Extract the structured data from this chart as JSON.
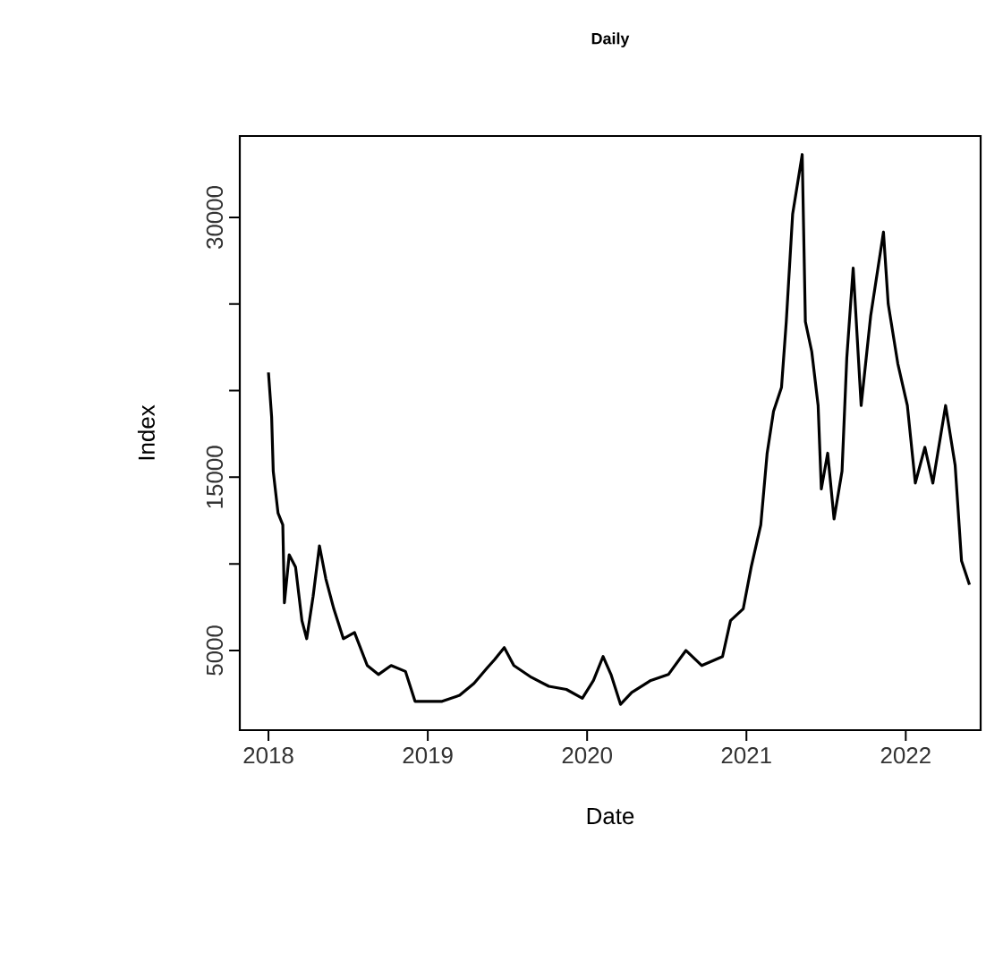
{
  "chart_data": {
    "type": "line",
    "title": "Daily",
    "xlabel": "Date",
    "ylabel": "Index",
    "xlim": [
      2017.82,
      2022.47
    ],
    "ylim": [
      400,
      34700
    ],
    "xticks": [
      2018,
      2019,
      2020,
      2021,
      2022
    ],
    "yticks": [
      {
        "value": 5000,
        "label": "5000"
      },
      {
        "value": 10000,
        "label": null
      },
      {
        "value": 15000,
        "label": "15000"
      },
      {
        "value": 20000,
        "label": null
      },
      {
        "value": 25000,
        "label": null
      },
      {
        "value": 30000,
        "label": "30000"
      }
    ],
    "series": [
      {
        "color": "#000000",
        "x": [
          2018.0,
          2018.02,
          2018.03,
          2018.06,
          2018.09,
          2018.1,
          2018.13,
          2018.17,
          2018.21,
          2018.24,
          2018.28,
          2018.32,
          2018.36,
          2018.41,
          2018.47,
          2018.54,
          2018.62,
          2018.69,
          2018.77,
          2018.86,
          2018.92,
          2018.99,
          2019.09,
          2019.2,
          2019.29,
          2019.37,
          2019.42,
          2019.48,
          2019.54,
          2019.65,
          2019.76,
          2019.87,
          2019.97,
          2020.04,
          2020.1,
          2020.15,
          2020.21,
          2020.28,
          2020.4,
          2020.51,
          2020.62,
          2020.72,
          2020.85,
          2020.9,
          2020.98,
          2021.03,
          2021.09,
          2021.13,
          2021.17,
          2021.22,
          2021.25,
          2021.29,
          2021.35,
          2021.37,
          2021.41,
          2021.45,
          2021.47,
          2021.51,
          2021.55,
          2021.6,
          2021.63,
          2021.67,
          2021.72,
          2021.78,
          2021.86,
          2021.89,
          2021.95,
          2022.01,
          2022.06,
          2022.12,
          2022.17,
          2022.25,
          2022.31,
          2022.35,
          2022.4
        ],
        "values": [
          21050,
          18460,
          15350,
          12930,
          12250,
          7750,
          10520,
          9820,
          6720,
          5680,
          8110,
          11040,
          9140,
          7410,
          5680,
          6040,
          4130,
          3610,
          4130,
          3790,
          2060,
          2060,
          2060,
          2410,
          3100,
          3960,
          4480,
          5170,
          4130,
          3450,
          2930,
          2750,
          2240,
          3270,
          4650,
          3610,
          1890,
          2580,
          3270,
          3610,
          5000,
          4130,
          4650,
          6720,
          7410,
          9820,
          12250,
          16390,
          18800,
          20180,
          23980,
          30190,
          33630,
          23980,
          22250,
          19140,
          14320,
          16390,
          12590,
          15350,
          21910,
          27080,
          19140,
          24330,
          29150,
          25000,
          21560,
          19140,
          14660,
          16730,
          14660,
          19140,
          15690,
          10180,
          8790
        ]
      }
    ]
  }
}
